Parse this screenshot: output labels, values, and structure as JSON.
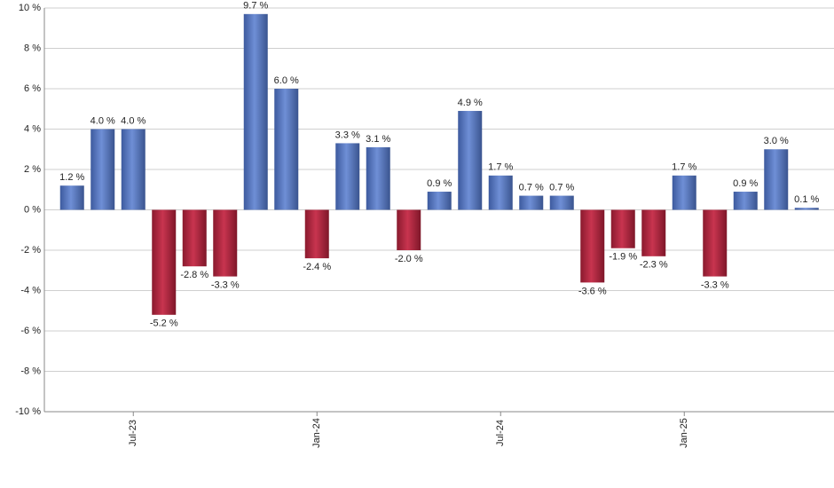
{
  "chart_data": {
    "type": "bar",
    "categories": [
      null,
      null,
      "Jul-23",
      null,
      null,
      null,
      null,
      null,
      "Jan-24",
      null,
      null,
      null,
      null,
      null,
      "Jul-24",
      null,
      null,
      null,
      null,
      null,
      "Jan-25",
      null,
      null,
      null,
      null
    ],
    "values": [
      1.2,
      4.0,
      4.0,
      -5.2,
      -2.8,
      -3.3,
      9.7,
      6.0,
      -2.4,
      3.3,
      3.1,
      -2.0,
      0.9,
      4.9,
      1.7,
      0.7,
      0.7,
      -3.6,
      -1.9,
      -2.3,
      1.7,
      -3.3,
      0.9,
      3.0,
      0.1
    ],
    "value_labels": [
      "1.2 %",
      "4.0 %",
      "4.0 %",
      "-5.2 %",
      "-2.8 %",
      "-3.3 %",
      "9.7 %",
      "6.0 %",
      "-2.4 %",
      "3.3 %",
      "3.1 %",
      "-2.0 %",
      "0.9 %",
      "4.9 %",
      "1.7 %",
      "0.7 %",
      "0.7 %",
      "-3.6 %",
      "-1.9 %",
      "-2.3 %",
      "1.7 %",
      "-3.3 %",
      "0.9 %",
      "3.0 %",
      "0.1 %"
    ],
    "color": "#6f8fd6",
    "negative_color": "#c8344f",
    "ylim": [
      -10,
      10
    ],
    "yticks": [
      {
        "value": -10,
        "label": "-10 %"
      },
      {
        "value": -8,
        "label": "-8 %"
      },
      {
        "value": -6,
        "label": "-6 %"
      },
      {
        "value": -4,
        "label": "-4 %"
      },
      {
        "value": -2,
        "label": "-2 %"
      },
      {
        "value": 0,
        "label": "0 %"
      },
      {
        "value": 2,
        "label": "2 %"
      },
      {
        "value": 4,
        "label": "4 %"
      },
      {
        "value": 6,
        "label": "6 %"
      },
      {
        "value": 8,
        "label": "8 %"
      },
      {
        "value": 10,
        "label": "10 %"
      }
    ],
    "grid": true
  }
}
